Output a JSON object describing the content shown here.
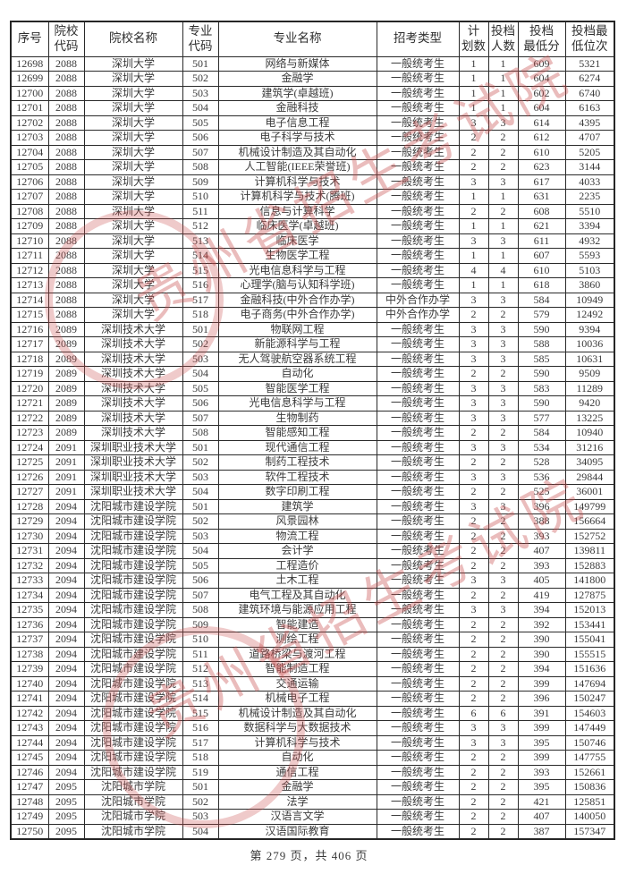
{
  "page": {
    "footer": "第 279 页，共 406 页"
  },
  "watermark": {
    "text": "贵州省招生考试院",
    "color": "#c94f4f"
  },
  "table": {
    "columns": [
      "序号",
      "院校\n代码",
      "院校名称",
      "专业\n代码",
      "专业名称",
      "招考类型",
      "计\n划数",
      "投档\n人数",
      "投档\n最低分",
      "投档最\n低位次"
    ],
    "rows": [
      [
        "12698",
        "2088",
        "深圳大学",
        "501",
        "网络与新媒体",
        "一般统考生",
        "1",
        "1",
        "609",
        "5321"
      ],
      [
        "12699",
        "2088",
        "深圳大学",
        "502",
        "金融学",
        "一般统考生",
        "1",
        "1",
        "604",
        "6274"
      ],
      [
        "12700",
        "2088",
        "深圳大学",
        "503",
        "建筑学(卓越班)",
        "一般统考生",
        "1",
        "1",
        "602",
        "6740"
      ],
      [
        "12701",
        "2088",
        "深圳大学",
        "504",
        "金融科技",
        "一般统考生",
        "1",
        "1",
        "604",
        "6163"
      ],
      [
        "12702",
        "2088",
        "深圳大学",
        "505",
        "电子信息工程",
        "一般统考生",
        "3",
        "3",
        "614",
        "4395"
      ],
      [
        "12703",
        "2088",
        "深圳大学",
        "506",
        "电子科学与技术",
        "一般统考生",
        "2",
        "2",
        "612",
        "4707"
      ],
      [
        "12704",
        "2088",
        "深圳大学",
        "507",
        "机械设计制造及其自动化",
        "一般统考生",
        "2",
        "2",
        "610",
        "5205"
      ],
      [
        "12705",
        "2088",
        "深圳大学",
        "508",
        "人工智能(IEEE荣誉班)",
        "一般统考生",
        "2",
        "2",
        "623",
        "3144"
      ],
      [
        "12706",
        "2088",
        "深圳大学",
        "509",
        "计算机科学与技术",
        "一般统考生",
        "3",
        "3",
        "617",
        "4033"
      ],
      [
        "12707",
        "2088",
        "深圳大学",
        "510",
        "计算机科学与技术(腾班)",
        "一般统考生",
        "1",
        "1",
        "631",
        "2235"
      ],
      [
        "12708",
        "2088",
        "深圳大学",
        "511",
        "信息与计算科学",
        "一般统考生",
        "2",
        "2",
        "608",
        "5510"
      ],
      [
        "12709",
        "2088",
        "深圳大学",
        "512",
        "临床医学(卓越班)",
        "一般统考生",
        "1",
        "1",
        "621",
        "3394"
      ],
      [
        "12710",
        "2088",
        "深圳大学",
        "513",
        "临床医学",
        "一般统考生",
        "3",
        "3",
        "611",
        "4932"
      ],
      [
        "12711",
        "2088",
        "深圳大学",
        "514",
        "生物医学工程",
        "一般统考生",
        "1",
        "1",
        "607",
        "5593"
      ],
      [
        "12712",
        "2088",
        "深圳大学",
        "515",
        "光电信息科学与工程",
        "一般统考生",
        "4",
        "4",
        "610",
        "5103"
      ],
      [
        "12713",
        "2088",
        "深圳大学",
        "516",
        "心理学(脑与认知科学班)",
        "一般统考生",
        "1",
        "1",
        "618",
        "3860"
      ],
      [
        "12714",
        "2088",
        "深圳大学",
        "517",
        "金融科技(中外合作办学)",
        "中外合作办学",
        "3",
        "3",
        "584",
        "10949"
      ],
      [
        "12715",
        "2088",
        "深圳大学",
        "518",
        "电子商务(中外合作办学)",
        "中外合作办学",
        "2",
        "2",
        "579",
        "12492"
      ],
      [
        "12716",
        "2089",
        "深圳技术大学",
        "501",
        "物联网工程",
        "一般统考生",
        "3",
        "3",
        "590",
        "9394"
      ],
      [
        "12717",
        "2089",
        "深圳技术大学",
        "502",
        "新能源科学与工程",
        "一般统考生",
        "3",
        "3",
        "588",
        "10036"
      ],
      [
        "12718",
        "2089",
        "深圳技术大学",
        "503",
        "无人驾驶航空器系统工程",
        "一般统考生",
        "3",
        "3",
        "585",
        "10631"
      ],
      [
        "12719",
        "2089",
        "深圳技术大学",
        "504",
        "自动化",
        "一般统考生",
        "2",
        "2",
        "590",
        "9509"
      ],
      [
        "12720",
        "2089",
        "深圳技术大学",
        "505",
        "智能医学工程",
        "一般统考生",
        "3",
        "3",
        "583",
        "11289"
      ],
      [
        "12721",
        "2089",
        "深圳技术大学",
        "506",
        "光电信息科学与工程",
        "一般统考生",
        "3",
        "3",
        "590",
        "9420"
      ],
      [
        "12722",
        "2089",
        "深圳技术大学",
        "507",
        "生物制药",
        "一般统考生",
        "3",
        "3",
        "577",
        "13225"
      ],
      [
        "12723",
        "2089",
        "深圳技术大学",
        "508",
        "智能感知工程",
        "一般统考生",
        "2",
        "2",
        "584",
        "10940"
      ],
      [
        "12724",
        "2091",
        "深圳职业技术大学",
        "501",
        "现代通信工程",
        "一般统考生",
        "3",
        "3",
        "534",
        "31216"
      ],
      [
        "12725",
        "2091",
        "深圳职业技术大学",
        "502",
        "制药工程技术",
        "一般统考生",
        "2",
        "2",
        "528",
        "34095"
      ],
      [
        "12726",
        "2091",
        "深圳职业技术大学",
        "503",
        "软件工程技术",
        "一般统考生",
        "3",
        "3",
        "536",
        "29844"
      ],
      [
        "12727",
        "2091",
        "深圳职业技术大学",
        "504",
        "数字印刷工程",
        "一般统考生",
        "2",
        "2",
        "525",
        "36001"
      ],
      [
        "12728",
        "2094",
        "沈阳城市建设学院",
        "501",
        "建筑学",
        "一般统考生",
        "3",
        "3",
        "396",
        "149799"
      ],
      [
        "12729",
        "2094",
        "沈阳城市建设学院",
        "502",
        "风景园林",
        "一般统考生",
        "2",
        "2",
        "388",
        "156664"
      ],
      [
        "12730",
        "2094",
        "沈阳城市建设学院",
        "503",
        "物流工程",
        "一般统考生",
        "2",
        "2",
        "393",
        "152752"
      ],
      [
        "12731",
        "2094",
        "沈阳城市建设学院",
        "504",
        "会计学",
        "一般统考生",
        "2",
        "2",
        "407",
        "139811"
      ],
      [
        "12732",
        "2094",
        "沈阳城市建设学院",
        "505",
        "工程造价",
        "一般统考生",
        "2",
        "2",
        "393",
        "152883"
      ],
      [
        "12733",
        "2094",
        "沈阳城市建设学院",
        "506",
        "土木工程",
        "一般统考生",
        "3",
        "3",
        "405",
        "141800"
      ],
      [
        "12734",
        "2094",
        "沈阳城市建设学院",
        "507",
        "电气工程及其自动化",
        "一般统考生",
        "2",
        "2",
        "419",
        "127875"
      ],
      [
        "12735",
        "2094",
        "沈阳城市建设学院",
        "508",
        "建筑环境与能源应用工程",
        "一般统考生",
        "3",
        "3",
        "394",
        "152013"
      ],
      [
        "12736",
        "2094",
        "沈阳城市建设学院",
        "509",
        "智能建造",
        "一般统考生",
        "2",
        "2",
        "392",
        "153441"
      ],
      [
        "12737",
        "2094",
        "沈阳城市建设学院",
        "510",
        "测绘工程",
        "一般统考生",
        "2",
        "2",
        "390",
        "155041"
      ],
      [
        "12738",
        "2094",
        "沈阳城市建设学院",
        "511",
        "道路桥梁与渡河工程",
        "一般统考生",
        "2",
        "2",
        "390",
        "155515"
      ],
      [
        "12739",
        "2094",
        "沈阳城市建设学院",
        "512",
        "智能制造工程",
        "一般统考生",
        "2",
        "2",
        "394",
        "151636"
      ],
      [
        "12740",
        "2094",
        "沈阳城市建设学院",
        "513",
        "交通运输",
        "一般统考生",
        "2",
        "2",
        "399",
        "147694"
      ],
      [
        "12741",
        "2094",
        "沈阳城市建设学院",
        "514",
        "机械电子工程",
        "一般统考生",
        "2",
        "2",
        "396",
        "150247"
      ],
      [
        "12742",
        "2094",
        "沈阳城市建设学院",
        "515",
        "机械设计制造及其自动化",
        "一般统考生",
        "6",
        "6",
        "391",
        "154603"
      ],
      [
        "12743",
        "2094",
        "沈阳城市建设学院",
        "516",
        "数据科学与大数据技术",
        "一般统考生",
        "3",
        "3",
        "399",
        "147449"
      ],
      [
        "12744",
        "2094",
        "沈阳城市建设学院",
        "517",
        "计算机科学与技术",
        "一般统考生",
        "3",
        "3",
        "395",
        "150746"
      ],
      [
        "12745",
        "2094",
        "沈阳城市建设学院",
        "518",
        "自动化",
        "一般统考生",
        "2",
        "2",
        "399",
        "147755"
      ],
      [
        "12746",
        "2094",
        "沈阳城市建设学院",
        "519",
        "通信工程",
        "一般统考生",
        "2",
        "2",
        "393",
        "152661"
      ],
      [
        "12747",
        "2095",
        "沈阳城市学院",
        "501",
        "金融学",
        "一般统考生",
        "2",
        "2",
        "395",
        "150836"
      ],
      [
        "12748",
        "2095",
        "沈阳城市学院",
        "502",
        "法学",
        "一般统考生",
        "2",
        "2",
        "421",
        "125851"
      ],
      [
        "12749",
        "2095",
        "沈阳城市学院",
        "503",
        "汉语言文学",
        "一般统考生",
        "2",
        "2",
        "407",
        "140050"
      ],
      [
        "12750",
        "2095",
        "沈阳城市学院",
        "504",
        "汉语国际教育",
        "一般统考生",
        "2",
        "2",
        "387",
        "157347"
      ]
    ]
  }
}
